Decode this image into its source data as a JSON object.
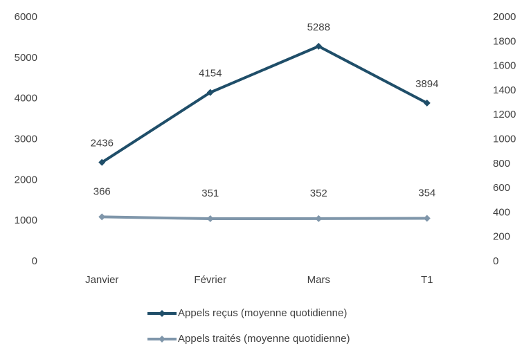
{
  "chart_data": {
    "type": "line",
    "categories": [
      "Janvier",
      "Février",
      "Mars",
      "T1"
    ],
    "series": [
      {
        "name": "Appels reçus (moyenne quotidienne)",
        "color": "#1f4e69",
        "values": [
          2436,
          4154,
          5288,
          3894
        ]
      },
      {
        "name": "Appels traités (moyenne quotidienne)",
        "color": "#7f96aa",
        "values": [
          366,
          351,
          352,
          354
        ],
        "axis": "y2"
      }
    ],
    "ylim": [
      0,
      6000
    ],
    "yticks": [
      0,
      1000,
      2000,
      3000,
      4000,
      5000,
      6000
    ],
    "y2lim": [
      0,
      2000
    ],
    "y2ticks": [
      0,
      200,
      400,
      600,
      800,
      1000,
      1200,
      1400,
      1600,
      1800,
      2000
    ],
    "grid": false
  }
}
